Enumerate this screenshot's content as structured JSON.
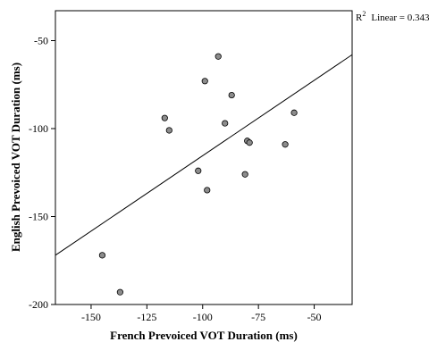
{
  "chart_data": {
    "type": "scatter",
    "xlabel": "French Prevoiced VOT Duration (ms)",
    "ylabel": "English Prevoiced VOT Duration (ms)",
    "xlim": [
      -166,
      -33
    ],
    "ylim": [
      -200,
      -33
    ],
    "xticks": [
      -150,
      -125,
      -100,
      -75,
      -50
    ],
    "yticks": [
      -50,
      -100,
      -150,
      -200
    ],
    "fit_line": {
      "label_r2": "R",
      "label_sup": "2",
      "label_rest": "Linear = 0.343",
      "x1": -166,
      "y1": -172,
      "x2": -33,
      "y2": -58
    },
    "points": [
      {
        "x": -145,
        "y": -172
      },
      {
        "x": -137,
        "y": -193
      },
      {
        "x": -117,
        "y": -94
      },
      {
        "x": -115,
        "y": -101
      },
      {
        "x": -102,
        "y": -124
      },
      {
        "x": -99,
        "y": -73
      },
      {
        "x": -98,
        "y": -135
      },
      {
        "x": -93,
        "y": -59
      },
      {
        "x": -90,
        "y": -97
      },
      {
        "x": -87,
        "y": -81
      },
      {
        "x": -81,
        "y": -126
      },
      {
        "x": -80,
        "y": -107
      },
      {
        "x": -79,
        "y": -108
      },
      {
        "x": -63,
        "y": -109
      },
      {
        "x": -59,
        "y": -91
      }
    ],
    "grid": false,
    "legend": "none"
  }
}
